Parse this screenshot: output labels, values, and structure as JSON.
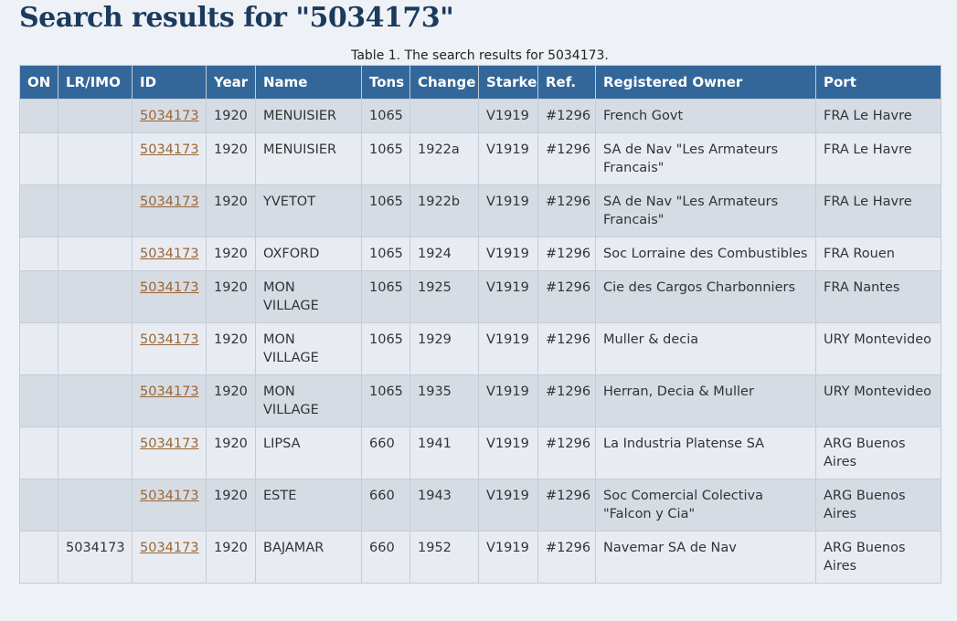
{
  "title": "Search results for \"5034173\"",
  "table": {
    "caption": "Table 1. The search results for 5034173.",
    "columns": [
      "ON",
      "LR/IMO",
      "ID",
      "Year",
      "Name",
      "Tons",
      "Change",
      "Starke",
      "Ref.",
      "Registered Owner",
      "Port"
    ],
    "rows": [
      [
        null,
        null,
        "5034173",
        "1920",
        "MENUISIER",
        "1065",
        null,
        "V1919",
        "#1296",
        "French Govt",
        "FRA Le Havre"
      ],
      [
        null,
        null,
        "5034173",
        "1920",
        "MENUISIER",
        "1065",
        "1922a",
        "V1919",
        "#1296",
        "SA de Nav \"Les Armateurs Francais\"",
        "FRA Le Havre"
      ],
      [
        null,
        null,
        "5034173",
        "1920",
        "YVETOT",
        "1065",
        "1922b",
        "V1919",
        "#1296",
        "SA de Nav \"Les Armateurs Francais\"",
        "FRA Le Havre"
      ],
      [
        null,
        null,
        "5034173",
        "1920",
        "OXFORD",
        "1065",
        "1924",
        "V1919",
        "#1296",
        "Soc Lorraine des Combustibles",
        "FRA Rouen"
      ],
      [
        null,
        null,
        "5034173",
        "1920",
        "MON VILLAGE",
        "1065",
        "1925",
        "V1919",
        "#1296",
        "Cie des Cargos Charbonniers",
        "FRA Nantes"
      ],
      [
        null,
        null,
        "5034173",
        "1920",
        "MON VILLAGE",
        "1065",
        "1929",
        "V1919",
        "#1296",
        "Muller & decia",
        "URY Montevideo"
      ],
      [
        null,
        null,
        "5034173",
        "1920",
        "MON VILLAGE",
        "1065",
        "1935",
        "V1919",
        "#1296",
        "Herran, Decia & Muller",
        "URY Montevideo"
      ],
      [
        null,
        null,
        "5034173",
        "1920",
        "LIPSA",
        "660",
        "1941",
        "V1919",
        "#1296",
        "La Industria Platense SA",
        "ARG Buenos Aires"
      ],
      [
        null,
        null,
        "5034173",
        "1920",
        "ESTE",
        "660",
        "1943",
        "V1919",
        "#1296",
        "Soc Comercial Colectiva \"Falcon y Cia\"",
        "ARG Buenos Aires"
      ],
      [
        null,
        "5034173",
        "5034173",
        "1920",
        "BAJAMAR",
        "660",
        "1952",
        "V1919",
        "#1296",
        "Navemar SA de Nav",
        "ARG Buenos Aires"
      ]
    ]
  }
}
